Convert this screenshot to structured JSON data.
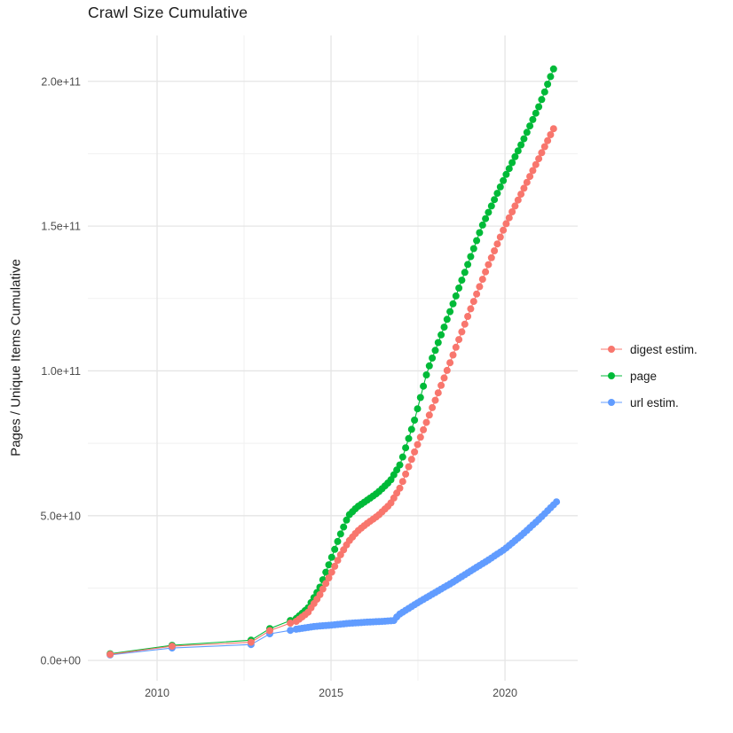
{
  "title": "Crawl Size Cumulative",
  "chart_data": {
    "type": "scatter",
    "title": "Crawl Size Cumulative",
    "xlabel": "",
    "ylabel": "Pages / Unique Items Cumulative",
    "legend_position": "right",
    "grid": true,
    "xlim": [
      2008.01,
      2022.09
    ],
    "ylim": [
      -7000000000.0,
      215850000000.0
    ],
    "x_major_ticks": [
      2010,
      2015,
      2020
    ],
    "x_tick_labels": [
      "2010",
      "2015",
      "2020"
    ],
    "x_minor_ticks": [
      2012.5,
      2017.5
    ],
    "y_major_ticks": [
      0,
      50000000000.0,
      100000000000.0,
      150000000000.0,
      200000000000.0
    ],
    "y_tick_labels": [
      "0.0e+00",
      "5.0e+10",
      "1.0e+11",
      "1.5e+11",
      "2.0e+11"
    ],
    "y_minor_ticks": [
      25000000000.0,
      75000000000.0,
      125000000000.0,
      175000000000.0
    ],
    "dense_from_year": 2014.0,
    "point_interval_years": 0.085,
    "series": [
      {
        "name": "digest estim.",
        "color": "#F8766D",
        "points": [
          [
            2008.65,
            2100000000.0
          ],
          [
            2010.43,
            4900000000.0
          ],
          [
            2012.7,
            6300000000.0
          ],
          [
            2013.24,
            10300000000.0
          ],
          [
            2013.83,
            12900000000.0
          ],
          [
            2014.0,
            13500000000.0
          ],
          [
            2014.33,
            16500000000.0
          ],
          [
            2014.67,
            22500000000.0
          ],
          [
            2015.0,
            30000000000.0
          ],
          [
            2015.25,
            36000000000.0
          ],
          [
            2015.5,
            41000000000.0
          ],
          [
            2015.75,
            44500000000.0
          ],
          [
            2016.0,
            47000000000.0
          ],
          [
            2016.35,
            50000000000.0
          ],
          [
            2016.7,
            54000000000.0
          ],
          [
            2017.0,
            60000000000.0
          ],
          [
            2017.5,
            75000000000.0
          ],
          [
            2018.0,
            90000000000.0
          ],
          [
            2018.33,
            100000000000.0
          ],
          [
            2019.0,
            121000000000.0
          ],
          [
            2019.5,
            136000000000.0
          ],
          [
            2020.0,
            150000000000.0
          ],
          [
            2020.5,
            162000000000.0
          ],
          [
            2021.0,
            174000000000.0
          ],
          [
            2021.45,
            185000000000.0
          ]
        ]
      },
      {
        "name": "page",
        "color": "#00BA38",
        "points": [
          [
            2008.65,
            2300000000.0
          ],
          [
            2010.43,
            5200000000.0
          ],
          [
            2012.7,
            7000000000.0
          ],
          [
            2013.24,
            11000000000.0
          ],
          [
            2013.83,
            13800000000.0
          ],
          [
            2014.0,
            14500000000.0
          ],
          [
            2014.33,
            18000000000.0
          ],
          [
            2014.67,
            25000000000.0
          ],
          [
            2015.0,
            35000000000.0
          ],
          [
            2015.25,
            43000000000.0
          ],
          [
            2015.5,
            50000000000.0
          ],
          [
            2015.75,
            53000000000.0
          ],
          [
            2016.0,
            55000000000.0
          ],
          [
            2016.35,
            58000000000.0
          ],
          [
            2016.7,
            62000000000.0
          ],
          [
            2017.0,
            68000000000.0
          ],
          [
            2017.4,
            83000000000.0
          ],
          [
            2017.77,
            100000000000.0
          ],
          [
            2018.5,
            123000000000.0
          ],
          [
            2019.0,
            139000000000.0
          ],
          [
            2019.34,
            150000000000.0
          ],
          [
            2020.0,
            167000000000.0
          ],
          [
            2020.5,
            179000000000.0
          ],
          [
            2021.0,
            192000000000.0
          ],
          [
            2021.45,
            206000000000.0
          ]
        ]
      },
      {
        "name": "url estim.",
        "color": "#619CFF",
        "points": [
          [
            2008.65,
            1900000000.0
          ],
          [
            2010.43,
            4300000000.0
          ],
          [
            2012.7,
            5500000000.0
          ],
          [
            2013.24,
            9200000000.0
          ],
          [
            2013.83,
            10400000000.0
          ],
          [
            2014.0,
            10800000000.0
          ],
          [
            2014.5,
            11700000000.0
          ],
          [
            2015.0,
            12200000000.0
          ],
          [
            2015.5,
            12800000000.0
          ],
          [
            2016.0,
            13200000000.0
          ],
          [
            2016.5,
            13500000000.0
          ],
          [
            2016.83,
            13800000000.0
          ],
          [
            2016.92,
            15600000000.0
          ],
          [
            2017.5,
            20000000000.0
          ],
          [
            2018.0,
            23500000000.0
          ],
          [
            2018.5,
            27000000000.0
          ],
          [
            2019.0,
            30800000000.0
          ],
          [
            2019.5,
            34500000000.0
          ],
          [
            2020.0,
            38500000000.0
          ],
          [
            2020.5,
            43500000000.0
          ],
          [
            2021.0,
            49000000000.0
          ],
          [
            2021.5,
            55000000000.0
          ]
        ]
      }
    ],
    "style": {
      "major_grid_color": "#e5e5e5",
      "minor_grid_color": "#f1f1f1",
      "point_radius": 4.0,
      "line_width": 1.1
    }
  }
}
